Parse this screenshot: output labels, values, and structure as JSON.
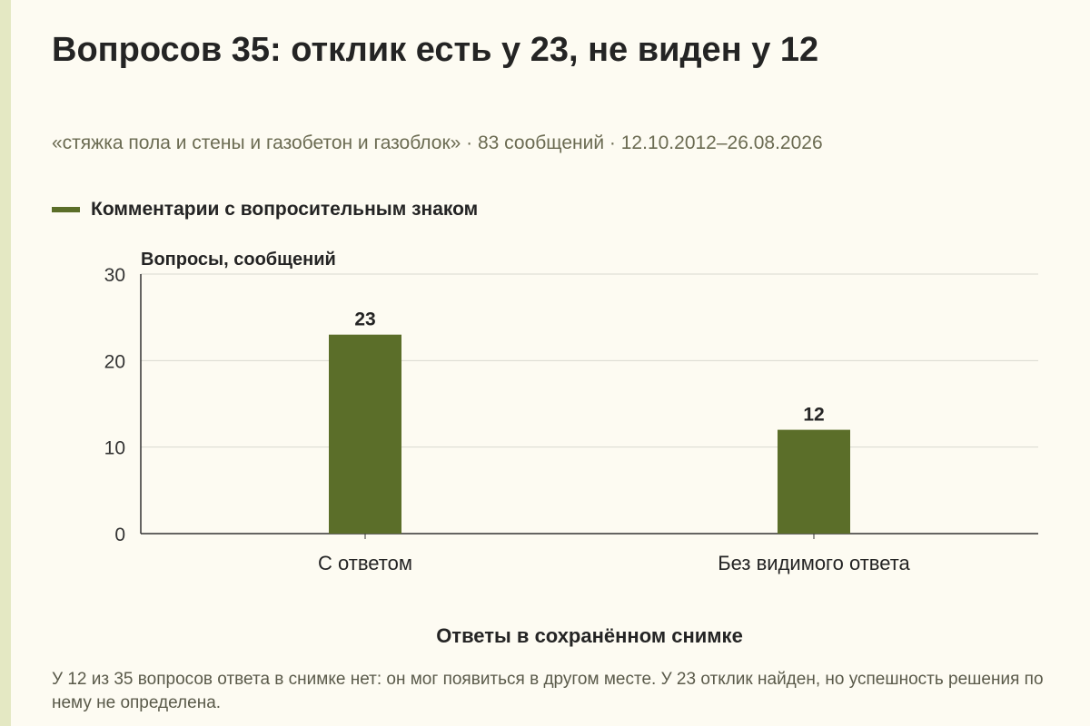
{
  "title": "Вопросов 35: отклик есть у 23, не виден у 12",
  "subtitle": "«стяжка пола и стены и газобетон и газоблок» · 83 сообщений · 12.10.2012–26.08.2026",
  "note": "У 12 из 35 вопросов ответа в снимке нет: он мог появиться в другом месте. У 23 отклик найден, но успешность решения по нему не определена.",
  "colors": {
    "bar": "#5b6e29",
    "grid": "#d9d9d0",
    "axis": "#333333"
  },
  "chart_data": {
    "type": "bar",
    "categories": [
      "С ответом",
      "Без видимого ответа"
    ],
    "series": [
      {
        "name": "Комментарии с вопросительным знаком",
        "values": [
          23,
          12
        ]
      }
    ],
    "data_labels": [
      "23",
      "12"
    ],
    "xlabel": "Ответы в сохранённом снимке",
    "ylabel": "Вопросы, сообщений",
    "ylim": [
      0,
      30
    ],
    "yticks": [
      "0",
      "10",
      "20",
      "30"
    ],
    "grid": true,
    "legend_position": "top-left"
  }
}
